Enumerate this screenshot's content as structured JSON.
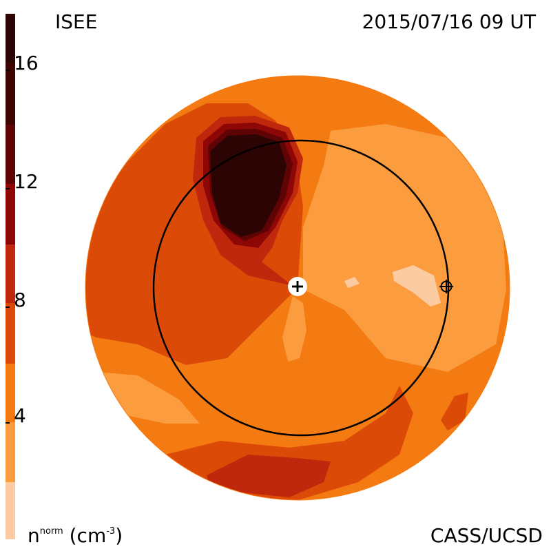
{
  "header": {
    "title_left": "ISEE",
    "title_right": "2015/07/16 09 UT"
  },
  "footer": {
    "unit_base": "n",
    "unit_sup": "norm",
    "unit_paren_open": " (cm",
    "unit_exp": "-3",
    "unit_paren_close": ")",
    "credit": "CASS/UCSD"
  },
  "colorbar": {
    "min": 0,
    "max": 18,
    "tick_labels": [
      "16",
      "12",
      "8",
      "4"
    ],
    "tick_values": [
      16,
      12,
      8,
      4
    ],
    "bands": [
      {
        "from": 0,
        "to": 2,
        "color": "#fccba1"
      },
      {
        "from": 2,
        "to": 6,
        "color": "#fb9c3f"
      },
      {
        "from": 6,
        "to": 8,
        "color": "#f47a12"
      },
      {
        "from": 8,
        "to": 10,
        "color": "#dc4a07"
      },
      {
        "from": 10,
        "to": 12,
        "color": "#c0280d"
      },
      {
        "from": 12,
        "to": 14,
        "color": "#8e0707"
      },
      {
        "from": 14,
        "to": 16,
        "color": "#5e0404"
      },
      {
        "from": 16,
        "to": 18,
        "color": "#2d0404"
      }
    ]
  },
  "map": {
    "markers": [
      "sun-marker",
      "earth-marker"
    ]
  }
}
